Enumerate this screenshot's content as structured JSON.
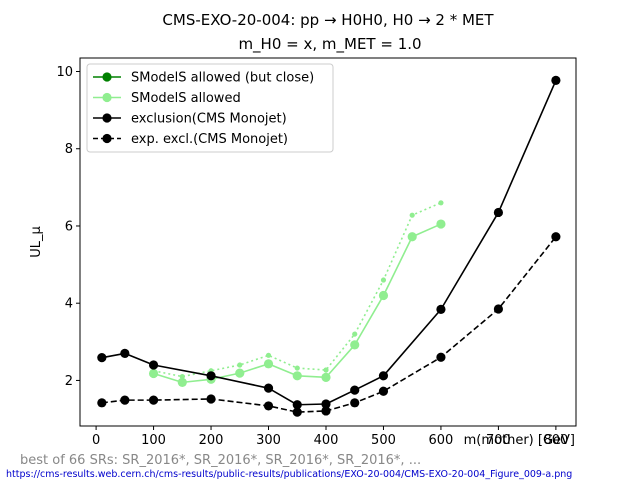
{
  "chart_data": {
    "type": "line",
    "title_line1": "CMS-EXO-20-004: pp → H0H0, H0 → 2 * MET",
    "title_line2": "m_H0 = x, m_MET = 1.0",
    "xlabel": "m(mother) [GeV]",
    "ylabel": "UL_μ",
    "xlim": [
      -28,
      835
    ],
    "ylim": [
      0.82,
      10.35
    ],
    "x_ticks": [
      0,
      100,
      200,
      300,
      400,
      500,
      600,
      700,
      800
    ],
    "y_ticks": [
      2,
      4,
      6,
      8,
      10
    ],
    "grid": false,
    "legend_placement": "top-left",
    "series": [
      {
        "name": "SModelS allowed (but close)",
        "style": "solid-marker",
        "color": "#008000",
        "x": [],
        "y": []
      },
      {
        "name": "SModelS allowed",
        "style": "solid-marker",
        "color": "#90ee90",
        "x": [
          100,
          150,
          200,
          250,
          300,
          350,
          400,
          450,
          500,
          550,
          600
        ],
        "y": [
          2.18,
          1.95,
          2.03,
          2.19,
          2.43,
          2.12,
          2.08,
          2.92,
          4.2,
          5.72,
          6.05
        ]
      },
      {
        "name": "",
        "style": "dotted-small-marker",
        "color": "#90ee90",
        "x": [
          100,
          150,
          200,
          250,
          300,
          350,
          400,
          450,
          500,
          550,
          600
        ],
        "y": [
          2.25,
          2.1,
          2.25,
          2.4,
          2.65,
          2.32,
          2.27,
          3.2,
          4.6,
          6.28,
          6.6
        ]
      },
      {
        "name": "exclusion(CMS Monojet)",
        "style": "solid-marker",
        "color": "#000000",
        "x": [
          10,
          50,
          100,
          200,
          300,
          350,
          400,
          450,
          500,
          600,
          700,
          800
        ],
        "y": [
          2.59,
          2.7,
          2.4,
          2.12,
          1.8,
          1.37,
          1.39,
          1.75,
          2.12,
          3.84,
          6.35,
          9.77
        ]
      },
      {
        "name": "exp. excl.(CMS Monojet)",
        "style": "dashed-marker",
        "color": "#000000",
        "x": [
          10,
          50,
          100,
          200,
          300,
          350,
          400,
          450,
          500,
          600,
          700,
          800
        ],
        "y": [
          1.42,
          1.49,
          1.49,
          1.52,
          1.34,
          1.18,
          1.21,
          1.42,
          1.72,
          2.6,
          3.85,
          5.72
        ]
      }
    ],
    "annotation": "best of 66 SRs: SR_2016*, SR_2016*, SR_2016*, SR_2016*, ...",
    "source_url": "https://cms-results.web.cern.ch/cms-results/public-results/publications/EXO-20-004/CMS-EXO-20-004_Figure_009-a.png"
  }
}
